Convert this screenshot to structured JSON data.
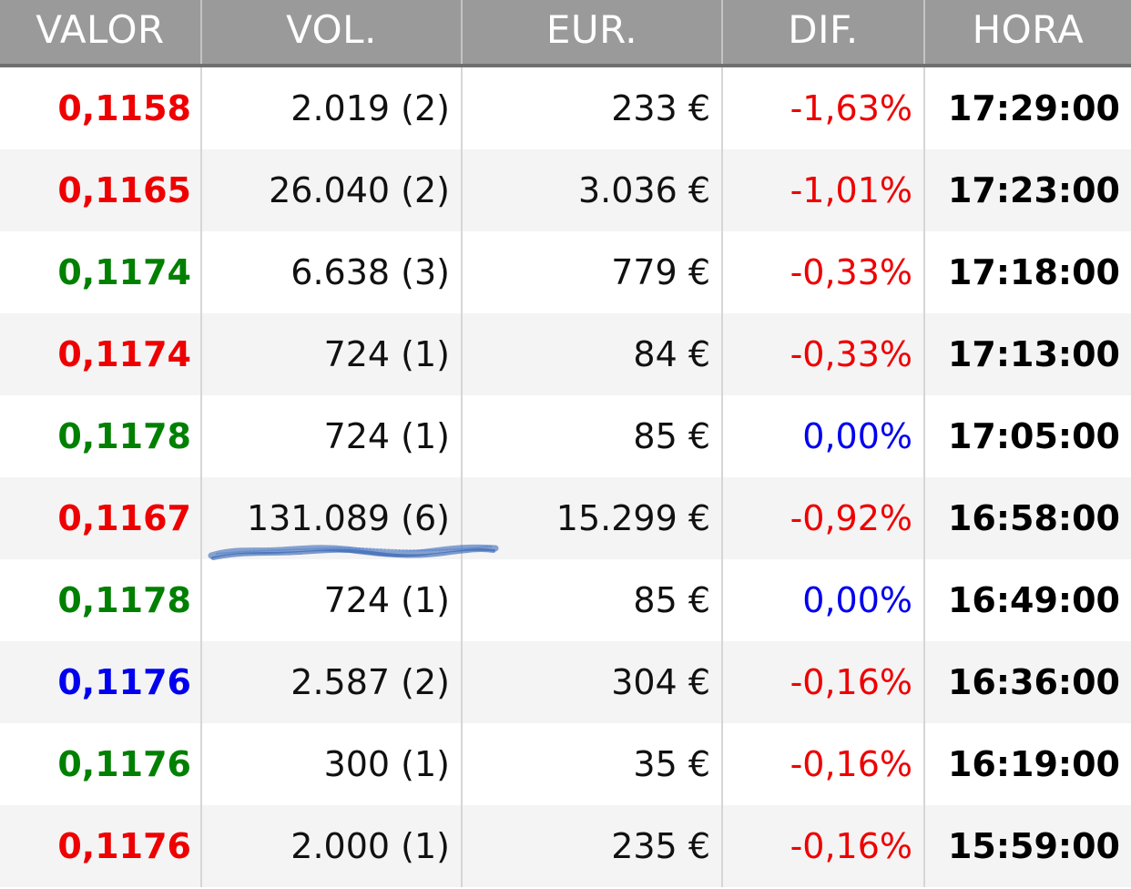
{
  "colors": {
    "up": "#008000",
    "down": "#ee0000",
    "neutral": "#0000ee",
    "header_bg": "#9a9a9a",
    "header_text": "#ffffff",
    "annotation": "#2a5db0"
  },
  "header": {
    "valor": "VALOR",
    "vol": "VOL.",
    "eur": "EUR.",
    "dif": "DIF.",
    "hora": "HORA"
  },
  "rows": [
    {
      "valor": "0,1158",
      "valor_color": "#ee0000",
      "vol": "2.019 (2)",
      "eur": "233 €",
      "dif": "-1,63%",
      "dif_color": "#ee0000",
      "hora": "17:29:00"
    },
    {
      "valor": "0,1165",
      "valor_color": "#ee0000",
      "vol": "26.040 (2)",
      "eur": "3.036 €",
      "dif": "-1,01%",
      "dif_color": "#ee0000",
      "hora": "17:23:00"
    },
    {
      "valor": "0,1174",
      "valor_color": "#008000",
      "vol": "6.638 (3)",
      "eur": "779 €",
      "dif": "-0,33%",
      "dif_color": "#ee0000",
      "hora": "17:18:00"
    },
    {
      "valor": "0,1174",
      "valor_color": "#ee0000",
      "vol": "724 (1)",
      "eur": "84 €",
      "dif": "-0,33%",
      "dif_color": "#ee0000",
      "hora": "17:13:00"
    },
    {
      "valor": "0,1178",
      "valor_color": "#008000",
      "vol": "724 (1)",
      "eur": "85 €",
      "dif": "0,00%",
      "dif_color": "#0000ee",
      "hora": "17:05:00"
    },
    {
      "valor": "0,1167",
      "valor_color": "#ee0000",
      "vol": "131.089 (6)",
      "eur": "15.299 €",
      "dif": "-0,92%",
      "dif_color": "#ee0000",
      "hora": "16:58:00"
    },
    {
      "valor": "0,1178",
      "valor_color": "#008000",
      "vol": "724 (1)",
      "eur": "85 €",
      "dif": "0,00%",
      "dif_color": "#0000ee",
      "hora": "16:49:00"
    },
    {
      "valor": "0,1176",
      "valor_color": "#0000ee",
      "vol": "2.587 (2)",
      "eur": "304 €",
      "dif": "-0,16%",
      "dif_color": "#ee0000",
      "hora": "16:36:00"
    },
    {
      "valor": "0,1176",
      "valor_color": "#008000",
      "vol": "300 (1)",
      "eur": "35 €",
      "dif": "-0,16%",
      "dif_color": "#ee0000",
      "hora": "16:19:00"
    },
    {
      "valor": "0,1176",
      "valor_color": "#ee0000",
      "vol": "2.000 (1)",
      "eur": "235 €",
      "dif": "-0,16%",
      "dif_color": "#ee0000",
      "hora": "15:59:00"
    }
  ]
}
